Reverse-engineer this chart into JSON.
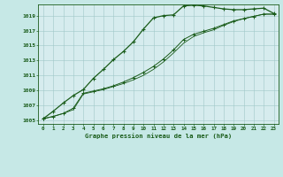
{
  "title": "Graphe pression niveau de la mer (hPa)",
  "bg_color": "#c6e8e6",
  "plot_bg_color": "#d6ecee",
  "grid_color": "#9fc8c8",
  "line_color": "#1a5c1a",
  "xlim_min": -0.5,
  "xlim_max": 23.5,
  "ylim_min": 1004.5,
  "ylim_max": 1020.5,
  "xticks": [
    0,
    1,
    2,
    3,
    4,
    5,
    6,
    7,
    8,
    9,
    10,
    11,
    12,
    13,
    14,
    15,
    16,
    17,
    18,
    19,
    20,
    21,
    22,
    23
  ],
  "yticks": [
    1005,
    1007,
    1009,
    1011,
    1013,
    1015,
    1017,
    1019
  ],
  "line1_x": [
    0,
    1,
    2,
    3,
    4,
    5,
    6,
    7,
    8,
    9,
    10,
    11,
    12,
    13,
    14,
    15,
    16,
    17,
    18,
    19,
    20,
    21,
    22,
    23
  ],
  "line1_y": [
    1005.2,
    1006.2,
    1007.3,
    1008.3,
    1009.1,
    1010.6,
    1011.8,
    1013.1,
    1014.2,
    1015.5,
    1017.2,
    1018.7,
    1019.0,
    1019.1,
    1020.3,
    1020.4,
    1020.3,
    1020.1,
    1019.9,
    1019.8,
    1019.8,
    1019.9,
    1020.0,
    1019.3
  ],
  "line2_x": [
    0,
    1,
    2,
    3,
    4,
    5,
    6,
    7,
    8,
    9,
    10,
    11,
    12,
    13,
    14,
    15,
    16,
    17,
    18,
    19,
    20,
    21,
    22,
    23
  ],
  "line2_y": [
    1005.2,
    1005.5,
    1005.9,
    1006.6,
    1008.6,
    1008.9,
    1009.2,
    1009.6,
    1010.1,
    1010.7,
    1011.4,
    1012.2,
    1013.2,
    1014.4,
    1015.8,
    1016.5,
    1016.9,
    1017.3,
    1017.8,
    1018.3,
    1018.6,
    1018.9,
    1019.2,
    1019.2
  ],
  "line3_x": [
    0,
    1,
    2,
    3,
    4,
    5,
    6,
    7,
    8,
    9,
    10,
    11,
    12,
    13,
    14,
    15,
    16,
    17,
    18,
    19,
    20,
    21,
    22,
    23
  ],
  "line3_y": [
    1005.2,
    1005.5,
    1005.9,
    1006.4,
    1008.5,
    1008.8,
    1009.1,
    1009.5,
    1009.9,
    1010.4,
    1011.0,
    1011.8,
    1012.8,
    1014.0,
    1015.3,
    1016.2,
    1016.7,
    1017.1,
    1017.7,
    1018.2,
    1018.6,
    1018.9,
    1019.2,
    1019.2
  ]
}
